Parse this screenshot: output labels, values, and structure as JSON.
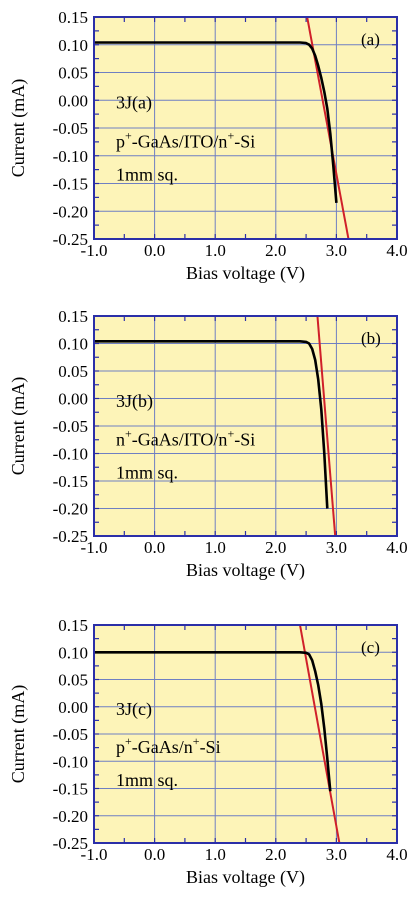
{
  "style": {
    "plot_bg": "#fdf4b8",
    "frame_color": "#2b2fa8",
    "grid_color": "#6f7fc2",
    "curve_color": "#000000",
    "fit_color": "#d0202a"
  },
  "chart_data": [
    {
      "type": "line",
      "panel_label": "(a)",
      "xlabel": "Bias voltage (V)",
      "ylabel": "Current (mA)",
      "xlim": [
        -1.0,
        4.0
      ],
      "ylim": [
        -0.25,
        0.15
      ],
      "xticks": [
        -1.0,
        0.0,
        1.0,
        2.0,
        3.0,
        4.0
      ],
      "xtick_labels": [
        "-1.0",
        "0.0",
        "1.0",
        "2.0",
        "3.0",
        "4.0"
      ],
      "yticks": [
        0.15,
        0.1,
        0.05,
        0.0,
        -0.05,
        -0.1,
        -0.15,
        -0.2,
        -0.25
      ],
      "ytick_labels": [
        "0.15",
        "0.10",
        "0.05",
        "0.00",
        "-0.05",
        "-0.10",
        "-0.15",
        "-0.20",
        "-0.25"
      ],
      "grid": true,
      "annotation": {
        "line1": "3J(a)",
        "line2_parts": [
          {
            "text": "p",
            "sup": false
          },
          {
            "text": "+",
            "sup": true
          },
          {
            "text": "-GaAs/ITO/n",
            "sup": false
          },
          {
            "text": "+",
            "sup": true
          },
          {
            "text": "-Si",
            "sup": false
          }
        ],
        "line3": "1mm sq."
      },
      "series": [
        {
          "role": "measured",
          "x": [
            -1.0,
            0.0,
            1.0,
            2.0,
            2.4,
            2.5,
            2.55,
            2.6,
            2.65,
            2.7,
            2.75,
            2.8,
            2.85,
            2.9,
            2.95,
            3.0
          ],
          "y": [
            0.104,
            0.104,
            0.104,
            0.104,
            0.104,
            0.103,
            0.1,
            0.093,
            0.08,
            0.062,
            0.04,
            0.015,
            -0.015,
            -0.06,
            -0.12,
            -0.185
          ]
        },
        {
          "role": "fit",
          "x": [
            2.5,
            3.2
          ],
          "y": [
            0.16,
            -0.25
          ]
        }
      ]
    },
    {
      "type": "line",
      "panel_label": "(b)",
      "xlabel": "Bias voltage (V)",
      "ylabel": "Current (mA)",
      "xlim": [
        -1.0,
        4.0
      ],
      "ylim": [
        -0.25,
        0.15
      ],
      "xticks": [
        -1.0,
        0.0,
        1.0,
        2.0,
        3.0,
        4.0
      ],
      "xtick_labels": [
        "-1.0",
        "0.0",
        "1.0",
        "2.0",
        "3.0",
        "4.0"
      ],
      "yticks": [
        0.15,
        0.1,
        0.05,
        0.0,
        -0.05,
        -0.1,
        -0.15,
        -0.2,
        -0.25
      ],
      "ytick_labels": [
        "0.15",
        "0.10",
        "0.05",
        "0.00",
        "-0.05",
        "-0.10",
        "-0.15",
        "-0.20",
        "-0.25"
      ],
      "grid": true,
      "annotation": {
        "line1": "3J(b)",
        "line2_parts": [
          {
            "text": "n",
            "sup": false
          },
          {
            "text": "+",
            "sup": true
          },
          {
            "text": "-GaAs/ITO/n",
            "sup": false
          },
          {
            "text": "+",
            "sup": true
          },
          {
            "text": "-Si",
            "sup": false
          }
        ],
        "line3": "1mm sq."
      },
      "series": [
        {
          "role": "measured",
          "x": [
            -1.0,
            0.0,
            1.0,
            2.0,
            2.4,
            2.5,
            2.55,
            2.6,
            2.65,
            2.7,
            2.75,
            2.8,
            2.85
          ],
          "y": [
            0.104,
            0.104,
            0.104,
            0.104,
            0.104,
            0.103,
            0.1,
            0.09,
            0.07,
            0.035,
            -0.02,
            -0.1,
            -0.2
          ]
        },
        {
          "role": "fit",
          "x": [
            2.68,
            2.98
          ],
          "y": [
            0.16,
            -0.25
          ]
        }
      ]
    },
    {
      "type": "line",
      "panel_label": "(c)",
      "xlabel": "Bias voltage (V)",
      "ylabel": "Current (mA)",
      "xlim": [
        -1.0,
        4.0
      ],
      "ylim": [
        -0.25,
        0.15
      ],
      "xticks": [
        -1.0,
        0.0,
        1.0,
        2.0,
        3.0,
        4.0
      ],
      "xtick_labels": [
        "-1.0",
        "0.0",
        "1.0",
        "2.0",
        "3.0",
        "4.0"
      ],
      "yticks": [
        0.15,
        0.1,
        0.05,
        0.0,
        -0.05,
        -0.1,
        -0.15,
        -0.2,
        -0.25
      ],
      "ytick_labels": [
        "0.15",
        "0.10",
        "0.05",
        "0.00",
        "-0.05",
        "-0.10",
        "-0.15",
        "-0.20",
        "-0.25"
      ],
      "grid": true,
      "annotation": {
        "line1": "3J(c)",
        "line2_parts": [
          {
            "text": "p",
            "sup": false
          },
          {
            "text": "+",
            "sup": true
          },
          {
            "text": "-GaAs/n",
            "sup": false
          },
          {
            "text": "+",
            "sup": true
          },
          {
            "text": "-Si",
            "sup": false
          }
        ],
        "line3": "1mm sq."
      },
      "series": [
        {
          "role": "measured",
          "x": [
            -1.0,
            0.0,
            1.0,
            2.0,
            2.4,
            2.5,
            2.55,
            2.6,
            2.65,
            2.7,
            2.75,
            2.8,
            2.85,
            2.9
          ],
          "y": [
            0.1,
            0.1,
            0.1,
            0.1,
            0.1,
            0.099,
            0.096,
            0.085,
            0.065,
            0.04,
            0.005,
            -0.04,
            -0.095,
            -0.155
          ]
        },
        {
          "role": "fit",
          "x": [
            2.4,
            3.05
          ],
          "y": [
            0.15,
            -0.25
          ]
        }
      ]
    }
  ]
}
